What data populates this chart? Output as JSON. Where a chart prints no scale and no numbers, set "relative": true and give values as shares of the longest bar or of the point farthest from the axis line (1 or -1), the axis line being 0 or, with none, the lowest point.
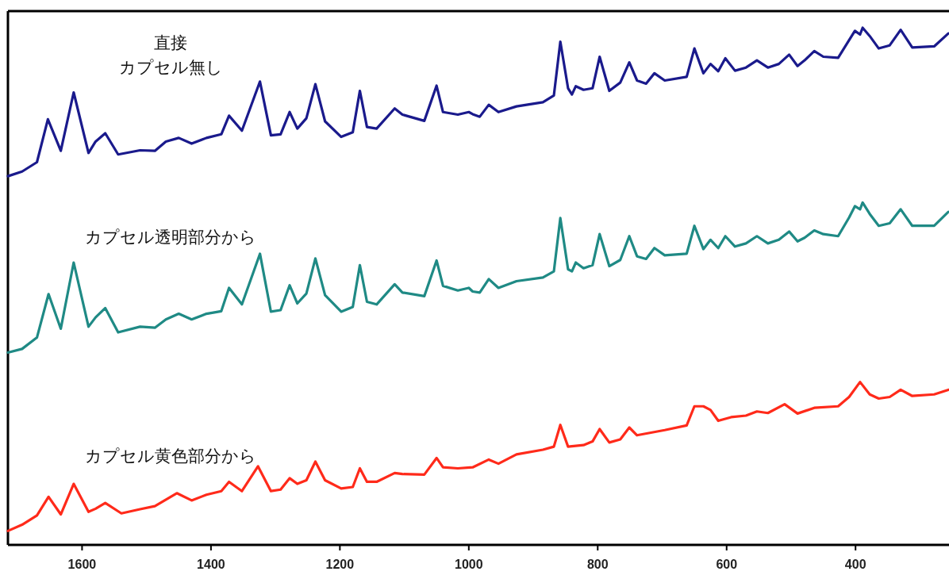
{
  "chart_data": {
    "type": "line",
    "relative": true,
    "xlim": [
      1715,
      255
    ],
    "xticks": [
      1600,
      1400,
      1200,
      1000,
      800,
      600,
      400
    ],
    "line_style": "solid",
    "marker": "none",
    "series": [
      {
        "name": "直接カプセル無し",
        "color": "#1a1a8c",
        "x": [
          1715,
          1693,
          1670,
          1653,
          1633,
          1613,
          1590,
          1579,
          1564,
          1544,
          1510,
          1487,
          1470,
          1450,
          1430,
          1407,
          1384,
          1372,
          1352,
          1324,
          1307,
          1292,
          1278,
          1266,
          1252,
          1238,
          1223,
          1198,
          1180,
          1169,
          1158,
          1143,
          1115,
          1103,
          1069,
          1050,
          1040,
          1017,
          1000,
          994,
          983,
          969,
          954,
          926,
          885,
          868,
          858,
          846,
          840,
          834,
          822,
          808,
          797,
          782,
          765,
          751,
          739,
          725,
          712,
          696,
          662,
          650,
          636,
          625,
          613,
          602,
          587,
          570,
          553,
          536,
          519,
          503,
          490,
          479,
          464,
          450,
          427,
          410,
          401,
          393,
          389,
          378,
          364,
          347,
          330,
          312,
          278,
          256
        ],
        "values": [
          0.713,
          0.722,
          0.74,
          0.823,
          0.762,
          0.875,
          0.758,
          0.78,
          0.796,
          0.755,
          0.763,
          0.762,
          0.78,
          0.787,
          0.776,
          0.787,
          0.794,
          0.83,
          0.801,
          0.896,
          0.792,
          0.794,
          0.837,
          0.805,
          0.825,
          0.891,
          0.819,
          0.789,
          0.798,
          0.878,
          0.808,
          0.805,
          0.844,
          0.832,
          0.82,
          0.888,
          0.837,
          0.832,
          0.837,
          0.833,
          0.828,
          0.851,
          0.837,
          0.848,
          0.856,
          0.869,
          0.973,
          0.883,
          0.871,
          0.887,
          0.88,
          0.883,
          0.944,
          0.878,
          0.894,
          0.933,
          0.898,
          0.892,
          0.912,
          0.898,
          0.905,
          0.96,
          0.912,
          0.93,
          0.916,
          0.941,
          0.917,
          0.923,
          0.937,
          0.923,
          0.93,
          0.948,
          0.926,
          0.937,
          0.955,
          0.944,
          0.942,
          0.976,
          0.994,
          0.987,
          1,
          0.984,
          0.96,
          0.966,
          0.996,
          0.962,
          0.964,
          0.989
        ]
      },
      {
        "name": "カプセル透明部分から",
        "color": "#1f8a85",
        "x": [
          1715,
          1693,
          1670,
          1652,
          1633,
          1613,
          1590,
          1579,
          1564,
          1544,
          1510,
          1487,
          1470,
          1450,
          1430,
          1407,
          1384,
          1372,
          1352,
          1324,
          1307,
          1292,
          1278,
          1266,
          1252,
          1238,
          1223,
          1198,
          1180,
          1169,
          1158,
          1143,
          1115,
          1103,
          1069,
          1050,
          1040,
          1017,
          1000,
          994,
          983,
          969,
          954,
          926,
          885,
          868,
          858,
          846,
          840,
          834,
          822,
          808,
          797,
          782,
          765,
          751,
          739,
          725,
          712,
          696,
          662,
          650,
          636,
          625,
          613,
          602,
          587,
          570,
          553,
          536,
          519,
          503,
          490,
          479,
          464,
          450,
          427,
          410,
          401,
          393,
          389,
          378,
          364,
          347,
          330,
          312,
          278,
          256
        ],
        "values": [
          0.372,
          0.379,
          0.401,
          0.485,
          0.418,
          0.546,
          0.422,
          0.44,
          0.458,
          0.411,
          0.422,
          0.42,
          0.436,
          0.447,
          0.436,
          0.447,
          0.452,
          0.497,
          0.465,
          0.563,
          0.451,
          0.454,
          0.502,
          0.467,
          0.486,
          0.554,
          0.483,
          0.451,
          0.46,
          0.541,
          0.47,
          0.465,
          0.504,
          0.488,
          0.481,
          0.55,
          0.501,
          0.492,
          0.497,
          0.49,
          0.488,
          0.514,
          0.497,
          0.51,
          0.517,
          0.529,
          0.632,
          0.533,
          0.529,
          0.546,
          0.535,
          0.541,
          0.601,
          0.539,
          0.551,
          0.597,
          0.558,
          0.553,
          0.574,
          0.56,
          0.563,
          0.617,
          0.572,
          0.59,
          0.574,
          0.597,
          0.577,
          0.583,
          0.597,
          0.583,
          0.59,
          0.606,
          0.587,
          0.594,
          0.608,
          0.601,
          0.597,
          0.633,
          0.655,
          0.649,
          0.662,
          0.64,
          0.617,
          0.622,
          0.649,
          0.617,
          0.617,
          0.644
        ]
      },
      {
        "name": "カプセル黄色部分から",
        "color": "#ff2a1a",
        "x": [
          1715,
          1693,
          1670,
          1652,
          1633,
          1613,
          1590,
          1579,
          1564,
          1539,
          1510,
          1487,
          1453,
          1430,
          1407,
          1384,
          1372,
          1352,
          1327,
          1307,
          1292,
          1278,
          1266,
          1252,
          1238,
          1223,
          1198,
          1180,
          1169,
          1158,
          1143,
          1115,
          1103,
          1069,
          1050,
          1040,
          1017,
          994,
          969,
          954,
          926,
          885,
          868,
          858,
          846,
          822,
          808,
          797,
          782,
          765,
          751,
          739,
          696,
          662,
          650,
          636,
          625,
          613,
          593,
          570,
          553,
          536,
          510,
          490,
          464,
          427,
          410,
          393,
          378,
          364,
          347,
          330,
          312,
          278,
          256
        ],
        "values": [
          0.027,
          0.039,
          0.057,
          0.093,
          0.059,
          0.118,
          0.064,
          0.07,
          0.081,
          0.061,
          0.069,
          0.075,
          0.1,
          0.086,
          0.097,
          0.104,
          0.122,
          0.104,
          0.152,
          0.104,
          0.107,
          0.129,
          0.118,
          0.125,
          0.161,
          0.125,
          0.109,
          0.112,
          0.148,
          0.122,
          0.122,
          0.139,
          0.137,
          0.136,
          0.168,
          0.15,
          0.148,
          0.15,
          0.165,
          0.157,
          0.175,
          0.184,
          0.19,
          0.232,
          0.19,
          0.193,
          0.2,
          0.224,
          0.198,
          0.204,
          0.227,
          0.212,
          0.222,
          0.231,
          0.268,
          0.268,
          0.261,
          0.24,
          0.247,
          0.25,
          0.258,
          0.255,
          0.272,
          0.254,
          0.265,
          0.268,
          0.286,
          0.315,
          0.291,
          0.283,
          0.286,
          0.3,
          0.288,
          0.291,
          0.3
        ]
      }
    ]
  }
}
